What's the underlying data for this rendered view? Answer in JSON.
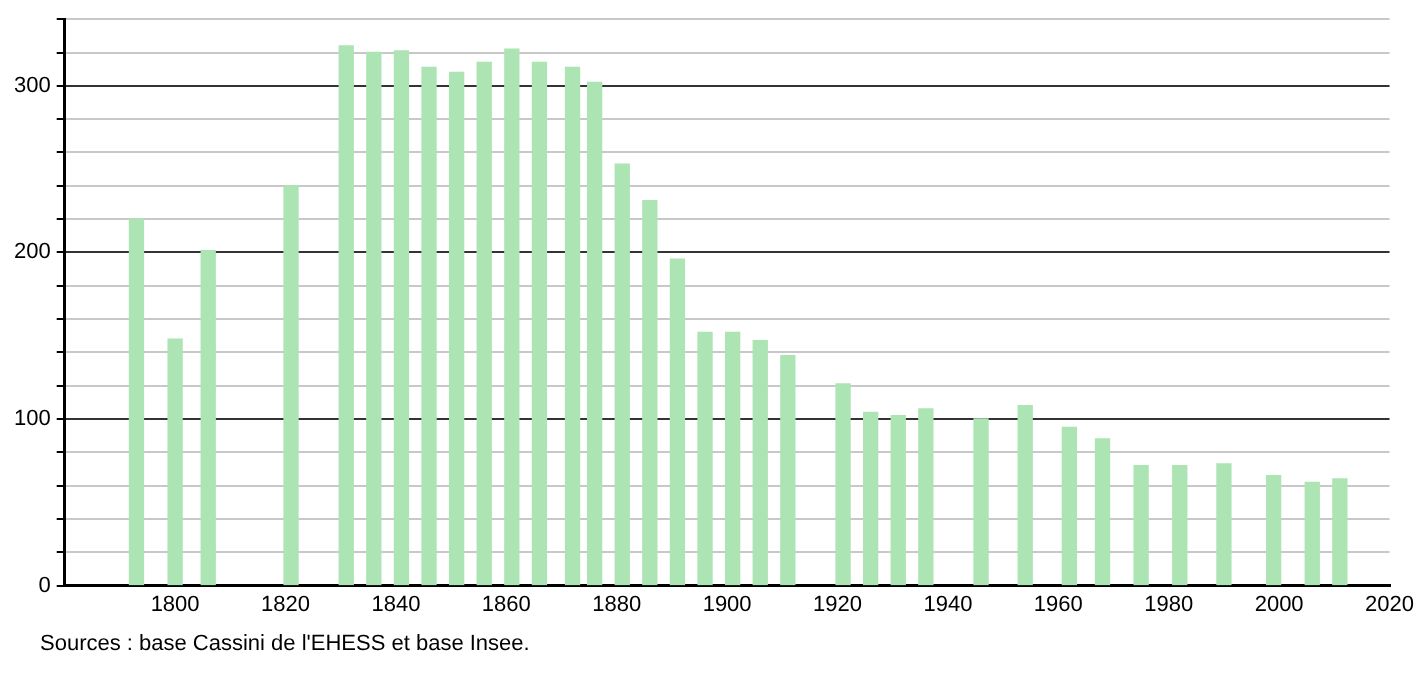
{
  "chart_data": {
    "type": "bar",
    "x": [
      1793,
      1800,
      1806,
      1821,
      1831,
      1836,
      1841,
      1846,
      1851,
      1856,
      1861,
      1866,
      1872,
      1876,
      1881,
      1886,
      1891,
      1896,
      1901,
      1906,
      1911,
      1921,
      1926,
      1931,
      1936,
      1946,
      1954,
      1962,
      1968,
      1975,
      1982,
      1990,
      1999,
      2006,
      2011
    ],
    "values": [
      220,
      148,
      201,
      240,
      324,
      320,
      321,
      311,
      308,
      314,
      322,
      314,
      311,
      302,
      253,
      231,
      196,
      152,
      152,
      147,
      138,
      121,
      104,
      102,
      106,
      100,
      108,
      95,
      88,
      72,
      72,
      73,
      66,
      62,
      64
    ],
    "color": "#ace4b4",
    "xlim": [
      1780,
      2020
    ],
    "xticks": [
      1800,
      1820,
      1840,
      1860,
      1880,
      1900,
      1920,
      1940,
      1960,
      1980,
      2000,
      2020
    ],
    "ylim": [
      0,
      340
    ],
    "yticks": [
      0,
      {
        "value": 20,
        "label": null
      },
      {
        "value": 40,
        "label": null
      },
      {
        "value": 60,
        "label": null
      },
      {
        "value": 80,
        "label": null
      },
      100,
      {
        "value": 120,
        "label": null
      },
      {
        "value": 140,
        "label": null
      },
      {
        "value": 160,
        "label": null
      },
      {
        "value": 180,
        "label": null
      },
      200,
      {
        "value": 220,
        "label": null
      },
      {
        "value": 240,
        "label": null
      },
      {
        "value": 260,
        "label": null
      },
      {
        "value": 280,
        "label": null
      },
      300,
      {
        "value": 320,
        "label": null
      },
      {
        "value": 340,
        "label": null
      }
    ],
    "grid": "y",
    "legend": false,
    "annotations": [
      "Sources : base Cassini de l'EHESS et base Insee."
    ]
  }
}
